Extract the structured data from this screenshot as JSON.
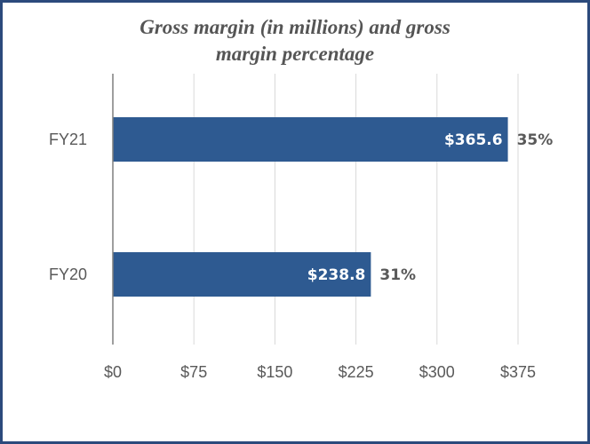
{
  "chart_data": {
    "type": "bar",
    "orientation": "horizontal",
    "title_line1": "Gross margin (in millions) and gross",
    "title_line2": "margin percentage",
    "categories": [
      "FY21",
      "FY20"
    ],
    "values": [
      365.6,
      238.8
    ],
    "value_labels": [
      "$365.6",
      "$238.8"
    ],
    "percent_labels": [
      "35%",
      "31%"
    ],
    "xlim": [
      0,
      375
    ],
    "ticks": [
      0,
      75,
      150,
      225,
      300,
      375
    ],
    "tick_labels": [
      "$0",
      "$75",
      "$150",
      "$225",
      "$300",
      "$375"
    ],
    "grid": true,
    "colors": {
      "bar": "#2e5a91",
      "frame": "#2c4a7c",
      "grid": "#d9d9d9",
      "axis": "#7f7f7f"
    }
  }
}
